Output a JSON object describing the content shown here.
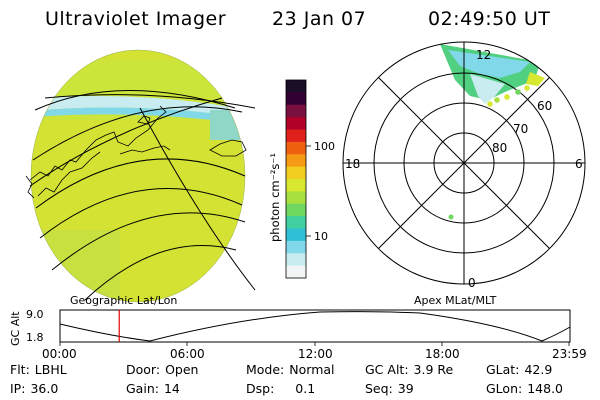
{
  "header": {
    "title": "Ultraviolet Imager",
    "date": "23 Jan 07",
    "time": "02:49:50 UT"
  },
  "colorbar": {
    "unit_label": "photon cm⁻²s⁻¹",
    "ticks": [
      "100",
      "10"
    ],
    "colors": [
      "#1a0d26",
      "#330033",
      "#7a1040",
      "#b2002a",
      "#e0201a",
      "#f06010",
      "#f59a15",
      "#f0cf20",
      "#d8e830",
      "#a8e040",
      "#70d860",
      "#40d0a0",
      "#30c0d8",
      "#80d8e8",
      "#c8ecf0",
      "#f2f5f5"
    ]
  },
  "geo_map": {
    "label": "Geographic Lat/Lon"
  },
  "polar_plot": {
    "label": "Apex MLat/MLT",
    "mlt_labels": [
      "12",
      "18",
      "6",
      "0"
    ],
    "lat_labels": [
      "60",
      "70",
      "80"
    ]
  },
  "altitude_plot": {
    "axis_title": "GC Alt",
    "y_ticks": [
      "9.0",
      "1.8"
    ],
    "x_ticks": [
      "00:00",
      "06:00",
      "12:00",
      "18:00",
      "23:59"
    ],
    "current_time_fraction": 0.116
  },
  "info": {
    "flt_label": "Flt:",
    "flt_value": "LBHL",
    "ip_label": "IP:",
    "ip_value": "36.0",
    "door_label": "Door:",
    "door_value": "Open",
    "gain_label": "Gain:",
    "gain_value": "14",
    "mode_label": "Mode:",
    "mode_value": "Normal",
    "dsp_label": "Dsp:",
    "dsp_value": "0.1",
    "gcalt_label": "GC Alt:",
    "gcalt_value": "3.9 Re",
    "seq_label": "Seq:",
    "seq_value": "39",
    "glat_label": "GLat:",
    "glat_value": "42.9",
    "glon_label": "GLon:",
    "glon_value": "148.0"
  }
}
